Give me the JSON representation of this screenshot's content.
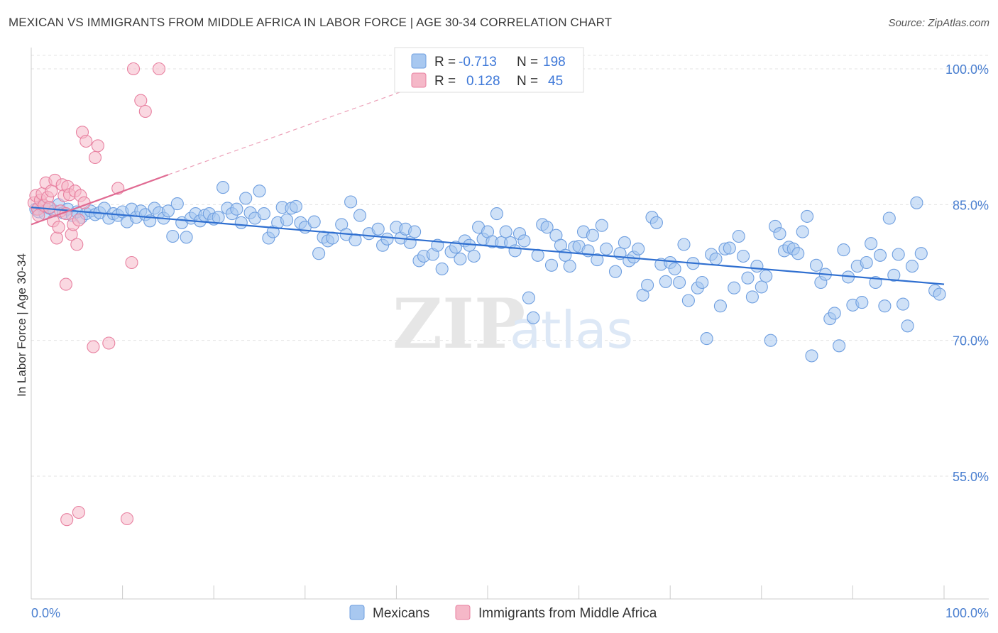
{
  "title": "MEXICAN VS IMMIGRANTS FROM MIDDLE AFRICA IN LABOR FORCE | AGE 30-34 CORRELATION CHART",
  "source": "Source: ZipAtlas.com",
  "watermark": {
    "zip": "ZIP",
    "atlas": "atlas"
  },
  "legend_top": {
    "rows": [
      {
        "r_label": "R =",
        "r_value": "-0.713",
        "n_label": "N =",
        "n_value": "198",
        "color": "#a8c8f0"
      },
      {
        "r_label": "R =",
        "r_value": "0.128",
        "n_label": "N =",
        "n_value": "45",
        "color": "#f5b8c8"
      }
    ]
  },
  "chart_data": {
    "type": "scatter",
    "title": "MEXICAN VS IMMIGRANTS FROM MIDDLE AFRICA IN LABOR FORCE | AGE 30-34 CORRELATION CHART",
    "xlabel": "",
    "ylabel": "In Labor Force | Age 30-34",
    "xlim": [
      0,
      100
    ],
    "ylim": [
      40,
      102
    ],
    "x_tick_labels": [
      "0.0%",
      "100.0%"
    ],
    "y_ticks": [
      55,
      70,
      85,
      100
    ],
    "y_tick_labels": [
      "55.0%",
      "70.0%",
      "85.0%",
      "100.0%"
    ],
    "grid": true,
    "legend_position": "bottom",
    "series": [
      {
        "name": "Mexicans",
        "color": "#6f9fe0",
        "fill": "#a8c8f0",
        "trend": {
          "x": [
            0,
            100
          ],
          "y": [
            84.7,
            76.2
          ]
        },
        "points": [
          [
            0.5,
            84.5
          ],
          [
            0.8,
            84.2
          ],
          [
            1.2,
            84.8
          ],
          [
            1.5,
            84.0
          ],
          [
            2,
            84.6
          ],
          [
            2.5,
            84.3
          ],
          [
            3,
            85.0
          ],
          [
            3.5,
            84.1
          ],
          [
            4,
            84.5
          ],
          [
            4.5,
            83.8
          ],
          [
            5,
            84.2
          ],
          [
            5.5,
            83.6
          ],
          [
            6,
            84.0
          ],
          [
            6.5,
            84.3
          ],
          [
            7,
            83.9
          ],
          [
            7.5,
            84.1
          ],
          [
            8,
            84.6
          ],
          [
            8.5,
            83.5
          ],
          [
            9,
            84.0
          ],
          [
            9.5,
            83.8
          ],
          [
            10,
            84.2
          ],
          [
            10.5,
            83.1
          ],
          [
            11,
            84.5
          ],
          [
            11.5,
            83.6
          ],
          [
            12,
            84.3
          ],
          [
            12.5,
            83.9
          ],
          [
            13,
            83.2
          ],
          [
            13.5,
            84.6
          ],
          [
            14,
            84.1
          ],
          [
            14.5,
            83.5
          ],
          [
            15,
            84.3
          ],
          [
            15.5,
            81.5
          ],
          [
            16,
            85.1
          ],
          [
            16.5,
            83.0
          ],
          [
            17,
            81.4
          ],
          [
            17.5,
            83.5
          ],
          [
            18,
            84.0
          ],
          [
            18.5,
            83.2
          ],
          [
            19,
            83.8
          ],
          [
            19.5,
            84.0
          ],
          [
            20,
            83.4
          ],
          [
            20.5,
            83.6
          ],
          [
            21,
            86.9
          ],
          [
            21.5,
            84.6
          ],
          [
            22,
            84.0
          ],
          [
            22.5,
            84.5
          ],
          [
            23,
            83.0
          ],
          [
            23.5,
            85.7
          ],
          [
            24,
            84.1
          ],
          [
            24.5,
            83.5
          ],
          [
            25,
            86.5
          ],
          [
            25.5,
            84.0
          ],
          [
            26,
            81.3
          ],
          [
            26.5,
            82.0
          ],
          [
            27,
            83.0
          ],
          [
            27.5,
            84.7
          ],
          [
            28,
            83.3
          ],
          [
            28.5,
            84.6
          ],
          [
            29,
            84.8
          ],
          [
            29.5,
            83.0
          ],
          [
            30,
            82.5
          ],
          [
            31,
            83.1
          ],
          [
            31.5,
            79.6
          ],
          [
            32,
            81.4
          ],
          [
            32.5,
            81.0
          ],
          [
            33,
            81.3
          ],
          [
            34,
            82.8
          ],
          [
            34.5,
            81.7
          ],
          [
            35,
            85.3
          ],
          [
            35.5,
            81.1
          ],
          [
            36,
            83.8
          ],
          [
            37,
            81.8
          ],
          [
            38,
            82.3
          ],
          [
            38.5,
            80.5
          ],
          [
            39,
            81.2
          ],
          [
            40,
            82.5
          ],
          [
            40.5,
            81.3
          ],
          [
            41,
            82.3
          ],
          [
            41.5,
            80.8
          ],
          [
            42,
            82.0
          ],
          [
            42.5,
            78.8
          ],
          [
            43,
            79.3
          ],
          [
            44,
            79.5
          ],
          [
            44.5,
            80.5
          ],
          [
            45,
            77.9
          ],
          [
            46,
            79.8
          ],
          [
            46.5,
            80.3
          ],
          [
            47,
            79.0
          ],
          [
            47.5,
            81.0
          ],
          [
            48,
            80.5
          ],
          [
            48.5,
            79.3
          ],
          [
            49,
            82.5
          ],
          [
            49.5,
            81.2
          ],
          [
            50,
            82.0
          ],
          [
            50.5,
            80.9
          ],
          [
            51,
            84.0
          ],
          [
            51.5,
            80.8
          ],
          [
            52,
            82.0
          ],
          [
            52.5,
            80.8
          ],
          [
            53,
            79.9
          ],
          [
            53.5,
            81.8
          ],
          [
            54,
            81.0
          ],
          [
            54.5,
            74.7
          ],
          [
            55,
            72.5
          ],
          [
            55.5,
            79.4
          ],
          [
            56,
            82.8
          ],
          [
            56.5,
            82.5
          ],
          [
            57,
            78.3
          ],
          [
            57.5,
            81.6
          ],
          [
            58,
            80.5
          ],
          [
            58.5,
            79.4
          ],
          [
            59,
            78.2
          ],
          [
            59.5,
            80.3
          ],
          [
            60,
            80.4
          ],
          [
            60.5,
            82.0
          ],
          [
            61,
            79.9
          ],
          [
            61.5,
            81.6
          ],
          [
            62,
            78.9
          ],
          [
            62.5,
            82.7
          ],
          [
            63,
            80.1
          ],
          [
            64,
            77.6
          ],
          [
            64.5,
            79.6
          ],
          [
            65,
            80.8
          ],
          [
            65.5,
            78.8
          ],
          [
            66,
            79.2
          ],
          [
            66.5,
            80.1
          ],
          [
            67,
            75.0
          ],
          [
            67.5,
            76.1
          ],
          [
            68,
            83.6
          ],
          [
            68.5,
            83.0
          ],
          [
            69,
            78.4
          ],
          [
            69.5,
            76.5
          ],
          [
            70,
            78.6
          ],
          [
            70.5,
            77.9
          ],
          [
            71,
            76.4
          ],
          [
            71.5,
            80.6
          ],
          [
            72,
            74.4
          ],
          [
            72.5,
            78.5
          ],
          [
            73,
            75.8
          ],
          [
            73.5,
            76.4
          ],
          [
            74,
            70.2
          ],
          [
            74.5,
            79.5
          ],
          [
            75,
            79.0
          ],
          [
            75.5,
            73.8
          ],
          [
            76,
            80.1
          ],
          [
            76.5,
            80.2
          ],
          [
            77,
            75.8
          ],
          [
            77.5,
            81.5
          ],
          [
            78,
            79.3
          ],
          [
            78.5,
            76.9
          ],
          [
            79,
            74.8
          ],
          [
            79.5,
            78.2
          ],
          [
            80,
            75.9
          ],
          [
            80.5,
            77.1
          ],
          [
            81,
            70.0
          ],
          [
            81.5,
            82.6
          ],
          [
            82,
            81.8
          ],
          [
            82.5,
            79.9
          ],
          [
            83,
            80.3
          ],
          [
            83.5,
            80.1
          ],
          [
            84,
            79.6
          ],
          [
            84.5,
            82.0
          ],
          [
            85,
            83.7
          ],
          [
            85.5,
            68.3
          ],
          [
            86,
            78.3
          ],
          [
            86.5,
            76.4
          ],
          [
            87,
            77.3
          ],
          [
            87.5,
            72.4
          ],
          [
            88,
            73.0
          ],
          [
            88.5,
            69.4
          ],
          [
            89,
            80.0
          ],
          [
            89.5,
            77.0
          ],
          [
            90,
            73.9
          ],
          [
            90.5,
            78.2
          ],
          [
            91,
            74.2
          ],
          [
            91.5,
            78.6
          ],
          [
            92,
            80.7
          ],
          [
            92.5,
            76.4
          ],
          [
            93,
            79.4
          ],
          [
            93.5,
            73.8
          ],
          [
            94,
            83.5
          ],
          [
            94.5,
            77.2
          ],
          [
            95,
            79.5
          ],
          [
            95.5,
            74.0
          ],
          [
            96,
            71.6
          ],
          [
            96.5,
            78.2
          ],
          [
            97,
            85.2
          ],
          [
            97.5,
            79.6
          ],
          [
            99,
            75.5
          ],
          [
            99.5,
            75.1
          ]
        ]
      },
      {
        "name": "Immigrants from Middle Africa",
        "color": "#e880a0",
        "fill": "#f5b8c8",
        "trend": {
          "x": [
            0,
            15
          ],
          "y": [
            82.8,
            88.3
          ]
        },
        "trend_extended": {
          "x": [
            15,
            42
          ],
          "y": [
            88.3,
            98.0
          ]
        },
        "points": [
          [
            0.3,
            85.2
          ],
          [
            0.5,
            86.0
          ],
          [
            0.7,
            84.5
          ],
          [
            0.8,
            83.8
          ],
          [
            1,
            85.5
          ],
          [
            1.2,
            86.2
          ],
          [
            1.4,
            84.9
          ],
          [
            1.6,
            87.4
          ],
          [
            1.8,
            85.8
          ],
          [
            2,
            84.7
          ],
          [
            2.2,
            86.5
          ],
          [
            2.4,
            83.2
          ],
          [
            2.6,
            87.7
          ],
          [
            2.8,
            81.3
          ],
          [
            3,
            82.5
          ],
          [
            3.2,
            84.3
          ],
          [
            3.4,
            87.2
          ],
          [
            3.6,
            86.0
          ],
          [
            3.8,
            84.0
          ],
          [
            4,
            87.0
          ],
          [
            4.2,
            86.1
          ],
          [
            4.4,
            81.7
          ],
          [
            4.6,
            82.8
          ],
          [
            4.8,
            86.5
          ],
          [
            5,
            80.6
          ],
          [
            5.2,
            83.3
          ],
          [
            5.4,
            86.0
          ],
          [
            5.6,
            93.0
          ],
          [
            5.8,
            85.2
          ],
          [
            6,
            92.0
          ],
          [
            7,
            90.2
          ],
          [
            7.3,
            91.5
          ],
          [
            3.8,
            76.2
          ],
          [
            6.8,
            69.3
          ],
          [
            8.5,
            69.7
          ],
          [
            9.5,
            86.8
          ],
          [
            11,
            78.6
          ],
          [
            11.2,
            100.0
          ],
          [
            14,
            100.0
          ],
          [
            12,
            96.5
          ],
          [
            12.5,
            95.3
          ],
          [
            3.9,
            50.2
          ],
          [
            5.2,
            51.0
          ],
          [
            10.5,
            50.3
          ]
        ]
      }
    ]
  },
  "legend_bottom": {
    "items": [
      {
        "label": "Mexicans",
        "color": "#a8c8f0"
      },
      {
        "label": "Immigrants from Middle Africa",
        "color": "#f5b8c8"
      }
    ]
  }
}
